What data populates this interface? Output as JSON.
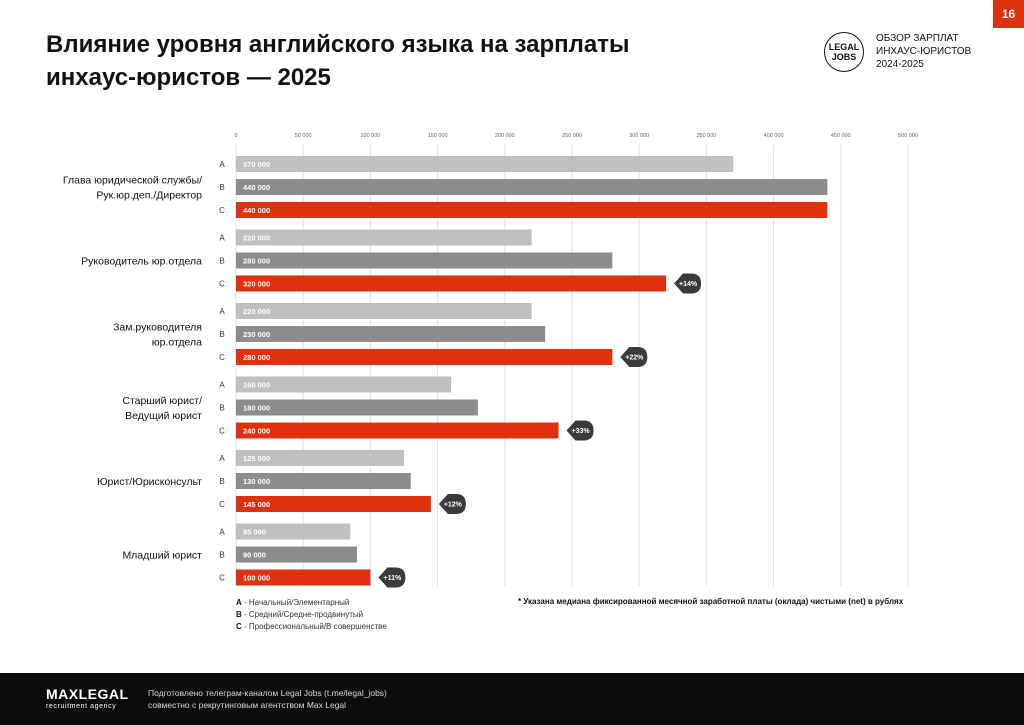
{
  "page": {
    "number": "16"
  },
  "header": {
    "title_line1": "Влияние уровня английского языка на зарплаты",
    "title_line2": "инхаус-юристов — 2025",
    "logo_line1": "LEGAL",
    "logo_line2": "JOBS",
    "report_line1": "ОБЗОР ЗАРПЛАТ",
    "report_line2": "ИНХАУС-ЮРИСТОВ",
    "report_line3": "2024-2025"
  },
  "chart_data": {
    "type": "bar",
    "orientation": "horizontal",
    "xlim": [
      0,
      500000
    ],
    "ticks": [
      0,
      50000,
      100000,
      150000,
      200000,
      250000,
      300000,
      350000,
      400000,
      450000,
      500000
    ],
    "tick_labels": [
      "0",
      "50 000",
      "100 000",
      "150 000",
      "200 000",
      "250 000",
      "300 000",
      "350 000",
      "400 000",
      "450 000",
      "500 000"
    ],
    "grid": true,
    "level_codes": [
      "A",
      "B",
      "C"
    ],
    "colors": {
      "A": "#bfbfbf",
      "B": "#8c8c8c",
      "C": "#e0310f",
      "badge": "#3a3a3a"
    },
    "groups": [
      {
        "label": [
          "Глава юридической службы/",
          "Рук.юр.деп./Директор"
        ],
        "values": [
          370000,
          440000,
          440000
        ],
        "labels": [
          "370 000",
          "440 000",
          "440 000"
        ],
        "badge": ""
      },
      {
        "label": [
          "Руководитель юр.отдела"
        ],
        "values": [
          220000,
          280000,
          320000
        ],
        "labels": [
          "220 000",
          "280 000",
          "320 000"
        ],
        "badge": "+14%"
      },
      {
        "label": [
          "Зам.руководителя",
          "юр.отдела"
        ],
        "values": [
          220000,
          230000,
          280000
        ],
        "labels": [
          "220 000",
          "230 000",
          "280 000"
        ],
        "badge": "+22%"
      },
      {
        "label": [
          "Старший юрист/",
          "Ведущий юрист"
        ],
        "values": [
          160000,
          180000,
          240000
        ],
        "labels": [
          "160 000",
          "180 000",
          "240 000"
        ],
        "badge": "+33%"
      },
      {
        "label": [
          "Юрист/Юрисконсульт"
        ],
        "values": [
          125000,
          130000,
          145000
        ],
        "labels": [
          "125 000",
          "130 000",
          "145 000"
        ],
        "badge": "+12%"
      },
      {
        "label": [
          "Младший юрист"
        ],
        "values": [
          85000,
          90000,
          100000
        ],
        "labels": [
          "85 000",
          "90 000",
          "100 000"
        ],
        "badge": "+11%"
      }
    ]
  },
  "legend": {
    "a_code": "A",
    "a_text": " - Начальный/Элементарный",
    "b_code": "B",
    "b_text": " - Средний/Средне-продвинутый",
    "c_code": "C",
    "c_text": " - Профессиональный/В совершенстве"
  },
  "footnote": "* Указана медиана фиксированной месячной заработной платы (оклада) чистыми (net) в рублях",
  "footer": {
    "brand": "MAXLEGAL",
    "brand_sub": "recruitment agency",
    "line1": "Подготовлено телеграм-каналом Legal Jobs (t.me/legal_jobs)",
    "line2": "совместно с рекрутинговым агентством Max Legal"
  }
}
